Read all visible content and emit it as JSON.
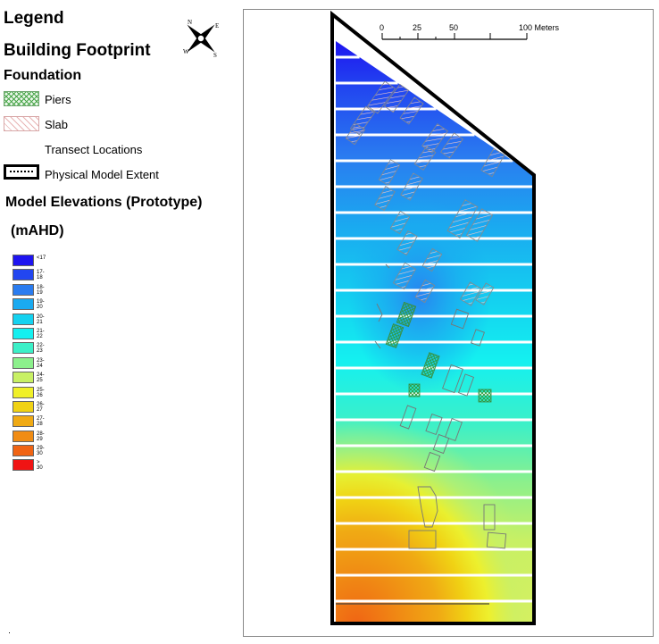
{
  "legend": {
    "title": "Legend",
    "building_footprint": "Building Footprint",
    "foundation": "Foundation",
    "piers": "Piers",
    "slab": "Slab",
    "transect_locations": "Transect Locations",
    "physical_model_extent": "Physical Model Extent",
    "elevations_title": "Model Elevations (Prototype)",
    "elevations_unit": "(mAHD)",
    "bins": [
      {
        "label": "<17",
        "color": "#1e14f0"
      },
      {
        "label": "17-18",
        "color": "#2246f0"
      },
      {
        "label": "18-19",
        "color": "#2a7cf0"
      },
      {
        "label": "19-20",
        "color": "#1aaaf0"
      },
      {
        "label": "20-21",
        "color": "#14d2f0"
      },
      {
        "label": "21-22",
        "color": "#14f0f0"
      },
      {
        "label": "22-23",
        "color": "#3cf0c8"
      },
      {
        "label": "23-24",
        "color": "#8cf08c"
      },
      {
        "label": "24-25",
        "color": "#c8f064"
      },
      {
        "label": "25-26",
        "color": "#f0f028"
      },
      {
        "label": "26-27",
        "color": "#f0d214"
      },
      {
        "label": "27-28",
        "color": "#f0aa14"
      },
      {
        "label": "28-29",
        "color": "#f08c14"
      },
      {
        "label": "29-30",
        "color": "#f06414"
      },
      {
        "label": "> 30",
        "color": "#f01414"
      }
    ]
  },
  "compass": {
    "n": "N",
    "e": "E",
    "s": "S",
    "w": "W"
  },
  "scale": {
    "ticks": [
      "0",
      "25",
      "50",
      "100 Meters"
    ]
  },
  "colors": {
    "frame": "#888888",
    "extent": "#000000",
    "transect": "#ffffff",
    "footprint_outline": "#777777"
  }
}
